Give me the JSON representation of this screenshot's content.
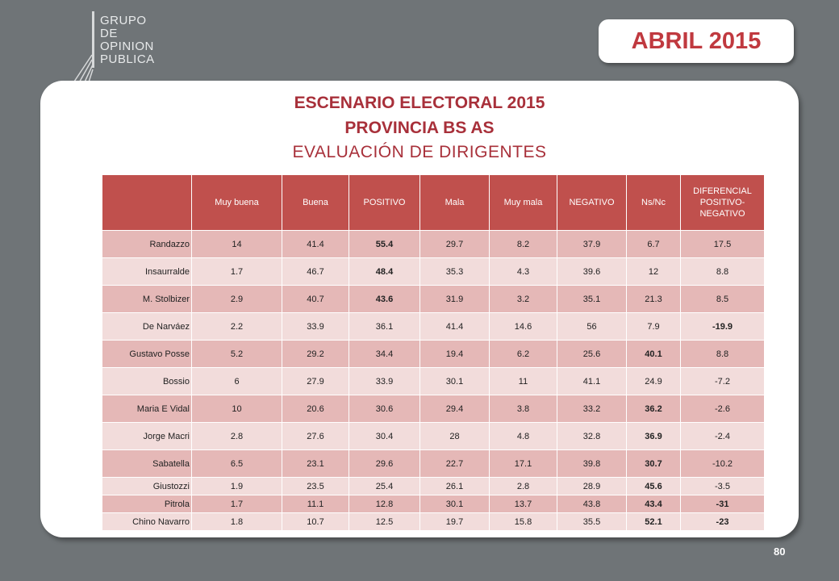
{
  "logo": {
    "lines": [
      "GRUPO",
      "DE",
      "OPINION",
      "PUBLICA"
    ]
  },
  "date_label": "ABRIL 2015",
  "title": {
    "line1": "ESCENARIO ELECTORAL 2015",
    "line2": "PROVINCIA BS AS",
    "line3": "EVALUACIÓN DE DIRIGENTES"
  },
  "table": {
    "headers": [
      "",
      "Muy buena",
      "Buena",
      "POSITIVO",
      "Mala",
      "Muy mala",
      "NEGATIVO",
      "Ns/Nc",
      "DIFERENCIAL POSITIVO-NEGATIVO"
    ],
    "rows": [
      [
        "Randazzo",
        "14",
        "41.4",
        "55.4",
        "29.7",
        "8.2",
        "37.9",
        "6.7",
        "17.5"
      ],
      [
        "Insaurralde",
        "1.7",
        "46.7",
        "48.4",
        "35.3",
        "4.3",
        "39.6",
        "12",
        "8.8"
      ],
      [
        "M. Stolbizer",
        "2.9",
        "40.7",
        "43.6",
        "31.9",
        "3.2",
        "35.1",
        "21.3",
        "8.5"
      ],
      [
        "De Narváez",
        "2.2",
        "33.9",
        "36.1",
        "41.4",
        "14.6",
        "56",
        "7.9",
        "-19.9"
      ],
      [
        "Gustavo Posse",
        "5.2",
        "29.2",
        "34.4",
        "19.4",
        "6.2",
        "25.6",
        "40.1",
        "8.8"
      ],
      [
        "Bossio",
        "6",
        "27.9",
        "33.9",
        "30.1",
        "11",
        "41.1",
        "24.9",
        "-7.2"
      ],
      [
        "Maria E Vidal",
        "10",
        "20.6",
        "30.6",
        "29.4",
        "3.8",
        "33.2",
        "36.2",
        "-2.6"
      ],
      [
        "Jorge Macri",
        "2.8",
        "27.6",
        "30.4",
        "28",
        "4.8",
        "32.8",
        "36.9",
        "-2.4"
      ],
      [
        "Sabatella",
        "6.5",
        "23.1",
        "29.6",
        "22.7",
        "17.1",
        "39.8",
        "30.7",
        "-10.2"
      ],
      [
        "Giustozzi",
        "1.9",
        "23.5",
        "25.4",
        "26.1",
        "2.8",
        "28.9",
        "45.6",
        "-3.5"
      ],
      [
        "Pitrola",
        "1.7",
        "11.1",
        "12.8",
        "30.1",
        "13.7",
        "43.8",
        "43.4",
        "-31"
      ],
      [
        "Chino Navarro",
        "1.8",
        "10.7",
        "12.5",
        "19.7",
        "15.8",
        "35.5",
        "52.1",
        "-23"
      ]
    ],
    "bold_cells": [
      [
        0,
        3
      ],
      [
        1,
        3
      ],
      [
        2,
        3
      ],
      [
        3,
        8
      ],
      [
        4,
        7
      ],
      [
        6,
        7
      ],
      [
        7,
        7
      ],
      [
        8,
        7
      ],
      [
        9,
        7
      ],
      [
        10,
        7
      ],
      [
        10,
        8
      ],
      [
        11,
        7
      ],
      [
        11,
        8
      ]
    ]
  },
  "page_number": "80"
}
